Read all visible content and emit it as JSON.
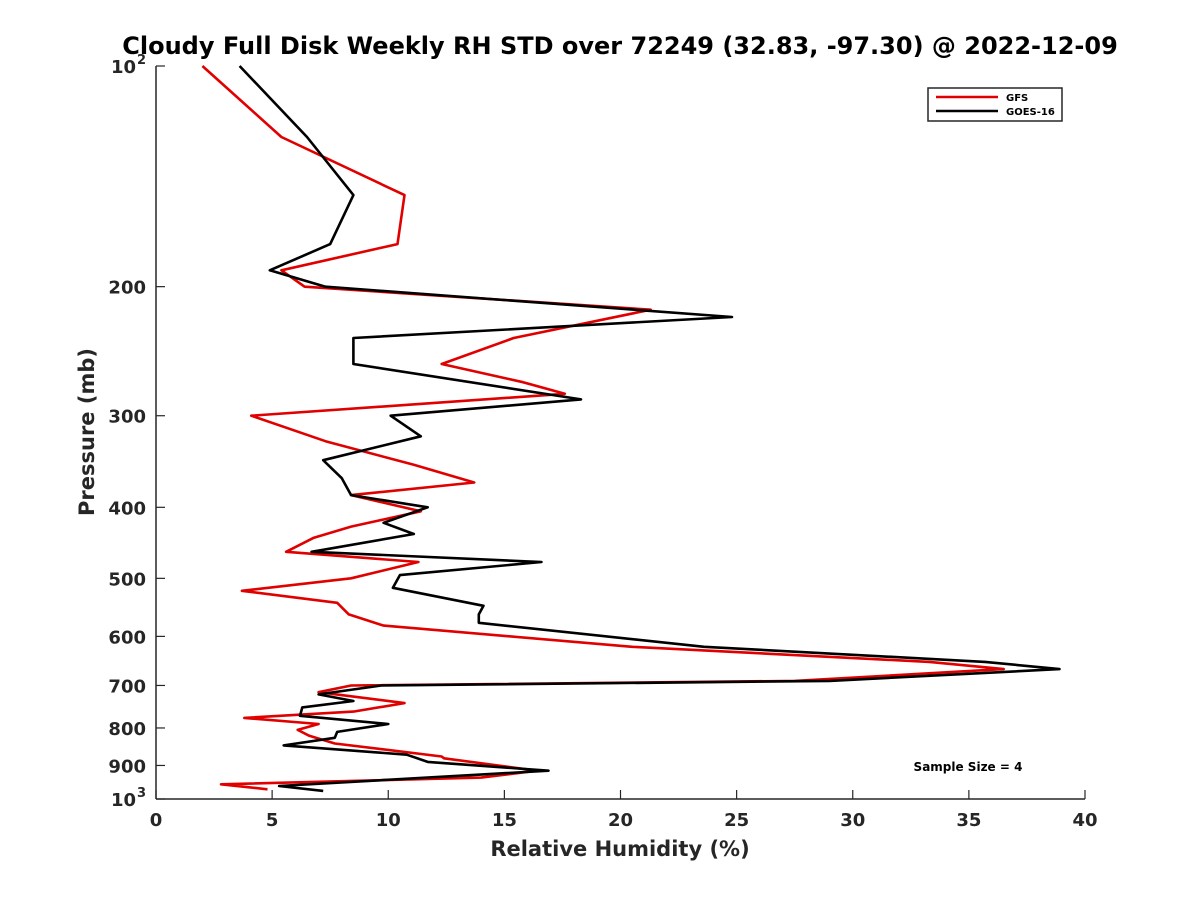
{
  "chart_data": {
    "type": "line",
    "title": "Cloudy Full Disk Weekly RH STD over 72249 (32.83, -97.30) @ 2022-12-09",
    "xlabel": "Relative Humidity (%)",
    "ylabel": "Pressure (mb)",
    "xlim": [
      0,
      40
    ],
    "ylim": [
      100,
      1000
    ],
    "yscale": "log",
    "y_reversed": true,
    "grid": false,
    "legend_position": "top-right",
    "x_ticks": [
      "0",
      "5",
      "10",
      "15",
      "20",
      "25",
      "30",
      "35",
      "40"
    ],
    "y_ticks": [
      {
        "value": 100,
        "base": "10",
        "exp": "2"
      },
      {
        "value": 200,
        "label": "200"
      },
      {
        "value": 300,
        "label": "300"
      },
      {
        "value": 400,
        "label": "400"
      },
      {
        "value": 500,
        "label": "500"
      },
      {
        "value": 600,
        "label": "600"
      },
      {
        "value": 700,
        "label": "700"
      },
      {
        "value": 800,
        "label": "800"
      },
      {
        "value": 900,
        "label": "900"
      },
      {
        "value": 1000,
        "base": "10",
        "exp": "3"
      }
    ],
    "annotation": "Sample Size = 4",
    "series": [
      {
        "name": "GFS",
        "color": "#e00000",
        "points": [
          [
            2.0,
            100
          ],
          [
            5.4,
            125
          ],
          [
            10.7,
            150
          ],
          [
            10.4,
            175
          ],
          [
            5.4,
            190
          ],
          [
            6.4,
            200
          ],
          [
            21.3,
            215
          ],
          [
            15.4,
            235
          ],
          [
            12.3,
            255
          ],
          [
            15.8,
            270
          ],
          [
            17.6,
            280
          ],
          [
            4.1,
            300
          ],
          [
            7.3,
            325
          ],
          [
            11.1,
            350
          ],
          [
            13.7,
            370
          ],
          [
            8.4,
            385
          ],
          [
            11.4,
            405
          ],
          [
            8.4,
            425
          ],
          [
            6.8,
            440
          ],
          [
            5.6,
            460
          ],
          [
            11.3,
            475
          ],
          [
            8.4,
            500
          ],
          [
            3.7,
            520
          ],
          [
            7.8,
            540
          ],
          [
            8.3,
            560
          ],
          [
            9.8,
            580
          ],
          [
            20.5,
            620
          ],
          [
            33.3,
            650
          ],
          [
            36.5,
            665
          ],
          [
            27.5,
            690
          ],
          [
            8.4,
            700
          ],
          [
            7.0,
            715
          ],
          [
            10.7,
            740
          ],
          [
            8.5,
            760
          ],
          [
            3.8,
            775
          ],
          [
            7.0,
            790
          ],
          [
            6.1,
            805
          ],
          [
            6.6,
            820
          ],
          [
            7.7,
            840
          ],
          [
            12.3,
            875
          ],
          [
            12.4,
            880
          ],
          [
            16.4,
            915
          ],
          [
            14.0,
            935
          ],
          [
            2.8,
            955
          ],
          [
            4.8,
            970
          ]
        ]
      },
      {
        "name": "GOES-16",
        "color": "#000000",
        "points": [
          [
            3.6,
            100
          ],
          [
            6.5,
            125
          ],
          [
            8.5,
            150
          ],
          [
            7.5,
            175
          ],
          [
            4.9,
            190
          ],
          [
            7.3,
            200
          ],
          [
            24.8,
            220
          ],
          [
            8.5,
            235
          ],
          [
            8.5,
            255
          ],
          [
            18.3,
            285
          ],
          [
            10.1,
            300
          ],
          [
            11.4,
            320
          ],
          [
            7.2,
            345
          ],
          [
            8.0,
            365
          ],
          [
            8.4,
            385
          ],
          [
            11.7,
            400
          ],
          [
            9.8,
            420
          ],
          [
            11.1,
            435
          ],
          [
            6.7,
            460
          ],
          [
            16.6,
            475
          ],
          [
            10.5,
            495
          ],
          [
            10.2,
            515
          ],
          [
            14.1,
            545
          ],
          [
            13.9,
            560
          ],
          [
            13.9,
            575
          ],
          [
            23.6,
            620
          ],
          [
            35.7,
            650
          ],
          [
            38.9,
            665
          ],
          [
            29.0,
            690
          ],
          [
            9.7,
            700
          ],
          [
            7.0,
            720
          ],
          [
            8.5,
            735
          ],
          [
            6.3,
            750
          ],
          [
            6.2,
            770
          ],
          [
            10.0,
            790
          ],
          [
            7.8,
            810
          ],
          [
            7.7,
            825
          ],
          [
            5.5,
            845
          ],
          [
            10.8,
            870
          ],
          [
            11.7,
            890
          ],
          [
            16.9,
            915
          ],
          [
            5.3,
            960
          ],
          [
            7.2,
            975
          ]
        ]
      }
    ]
  }
}
